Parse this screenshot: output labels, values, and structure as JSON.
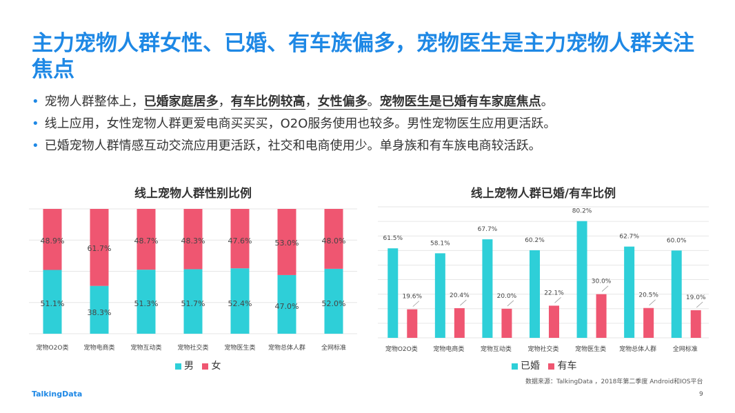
{
  "title": "主力宠物人群女性、已婚、有车族偏多，宠物医生是主力宠物人群关注焦点",
  "bullets": [
    {
      "parts": [
        {
          "text": "宠物人群整体上，",
          "hl": false
        },
        {
          "text": "已婚家庭居多",
          "hl": true
        },
        {
          "text": "，",
          "hl": false
        },
        {
          "text": "有车比例较高",
          "hl": true
        },
        {
          "text": "，",
          "hl": false
        },
        {
          "text": "女性偏多",
          "hl": true
        },
        {
          "text": "。",
          "hl": false
        },
        {
          "text": "宠物医生是已婚有车家庭焦点",
          "hl": true
        },
        {
          "text": "。",
          "hl": false
        }
      ]
    },
    {
      "parts": [
        {
          "text": "线上应用，女性宠物人群更爱电商买买买，O2O服务使用也较多。男性宠物医生应用更活跃。",
          "hl": false
        }
      ]
    },
    {
      "parts": [
        {
          "text": "已婚宠物人群情感互动交流应用更活跃，社交和电商使用少。单身族和有车族电商较活跃。",
          "hl": false
        }
      ]
    }
  ],
  "chart_data": [
    {
      "type": "bar",
      "stacked": true,
      "title": "线上宠物人群性别比例",
      "categories": [
        "宠物O2O类",
        "宠物电商类",
        "宠物互动类",
        "宠物社交类",
        "宠物医生类",
        "宠物总体人群",
        "全网标准"
      ],
      "series": [
        {
          "name": "男",
          "color": "#2ecfd8",
          "values": [
            51.1,
            38.3,
            51.3,
            51.7,
            52.4,
            47.0,
            52.0
          ],
          "labels": [
            "51.1%",
            "38.3%",
            "51.3%",
            "51.7%",
            "52.4%",
            "47.0%",
            "52.0%"
          ]
        },
        {
          "name": "女",
          "color": "#ef5671",
          "values": [
            48.9,
            61.7,
            48.7,
            48.3,
            47.6,
            53.0,
            48.0
          ],
          "labels": [
            "48.9%",
            "61.7%",
            "48.7%",
            "48.3%",
            "47.6%",
            "53.0%",
            "48.0%"
          ]
        }
      ],
      "ylim": [
        0,
        100
      ],
      "grid": true,
      "legend": "bottom"
    },
    {
      "type": "bar",
      "title": "线上宠物人群已婚/有车比例",
      "categories": [
        "宠物O2O类",
        "宠物电商类",
        "宠物互动类",
        "宠物社交类",
        "宠物医生类",
        "宠物总体人群",
        "全网标准"
      ],
      "series": [
        {
          "name": "已婚",
          "color": "#2ecfd8",
          "values": [
            61.5,
            58.1,
            67.7,
            60.2,
            80.2,
            62.7,
            60.0
          ],
          "labels": [
            "61.5%",
            "58.1%",
            "67.7%",
            "60.2%",
            "80.2%",
            "62.7%",
            "60.0%"
          ]
        },
        {
          "name": "有车",
          "color": "#ef5671",
          "values": [
            19.6,
            20.4,
            20.0,
            22.1,
            30.0,
            20.5,
            19.0
          ],
          "labels": [
            "19.6%",
            "20.4%",
            "20.0%",
            "22.1%",
            "30.0%",
            "20.5%",
            "19.0%"
          ]
        }
      ],
      "ylim": [
        0,
        90
      ],
      "grid": true,
      "legend": "bottom"
    }
  ],
  "footer": {
    "logo": "TalkingData",
    "source": "数据来源：TalkingData ，2018年第二季度 Android和IOS平台",
    "page": "9"
  }
}
